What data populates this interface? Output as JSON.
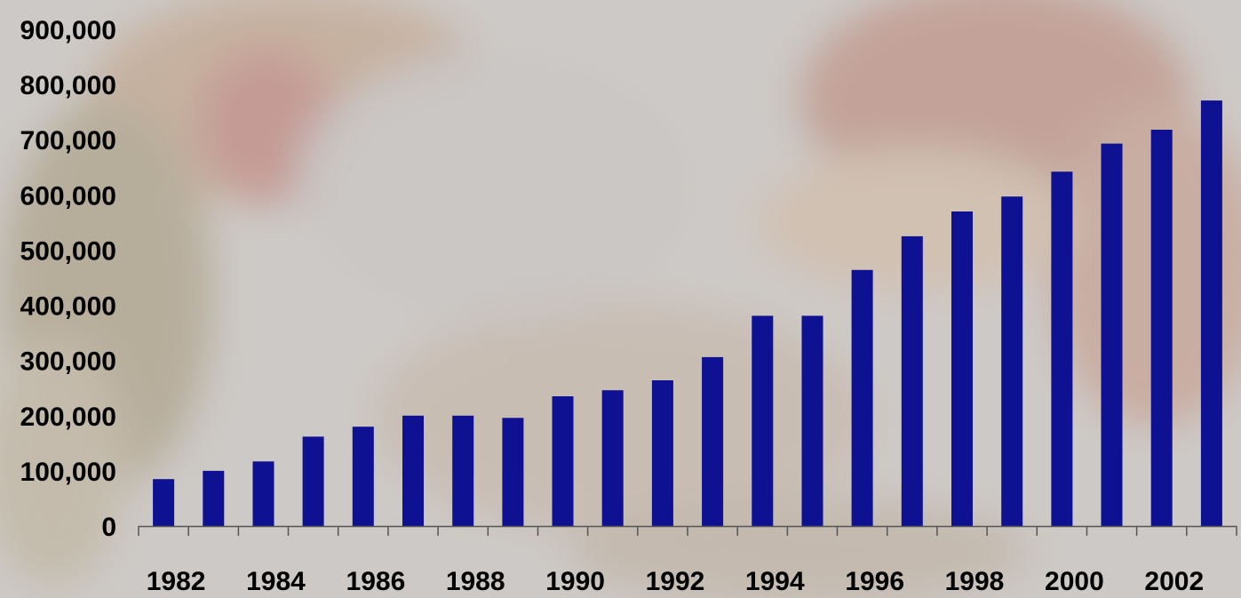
{
  "chart_data": {
    "type": "bar",
    "title": "",
    "xlabel": "",
    "ylabel": "",
    "categories": [
      "1982",
      "1983",
      "1984",
      "1985",
      "1986",
      "1987",
      "1988",
      "1989",
      "1990",
      "1991",
      "1992",
      "1993",
      "1994",
      "1995",
      "1996",
      "1997",
      "1998",
      "1999",
      "2000",
      "2001",
      "2002",
      "2003"
    ],
    "values": [
      85000,
      100000,
      117000,
      162000,
      180000,
      200000,
      200000,
      196000,
      235000,
      246000,
      264000,
      306000,
      381000,
      381000,
      464000,
      525000,
      570000,
      597000,
      642000,
      693000,
      718000,
      771000
    ],
    "x_tick_labels": [
      "1982",
      "1984",
      "1986",
      "1988",
      "1990",
      "1992",
      "1994",
      "1996",
      "1998",
      "2000",
      "2002"
    ],
    "y_tick_labels": [
      "0",
      "100,000",
      "200,000",
      "300,000",
      "400,000",
      "500,000",
      "600,000",
      "700,000",
      "800,000",
      "900,000"
    ],
    "ylim": [
      0,
      900000
    ],
    "grid": false,
    "legend": "none",
    "colors": {
      "bar": "#0d1192",
      "axis": "#555555",
      "text": "#000000"
    }
  }
}
